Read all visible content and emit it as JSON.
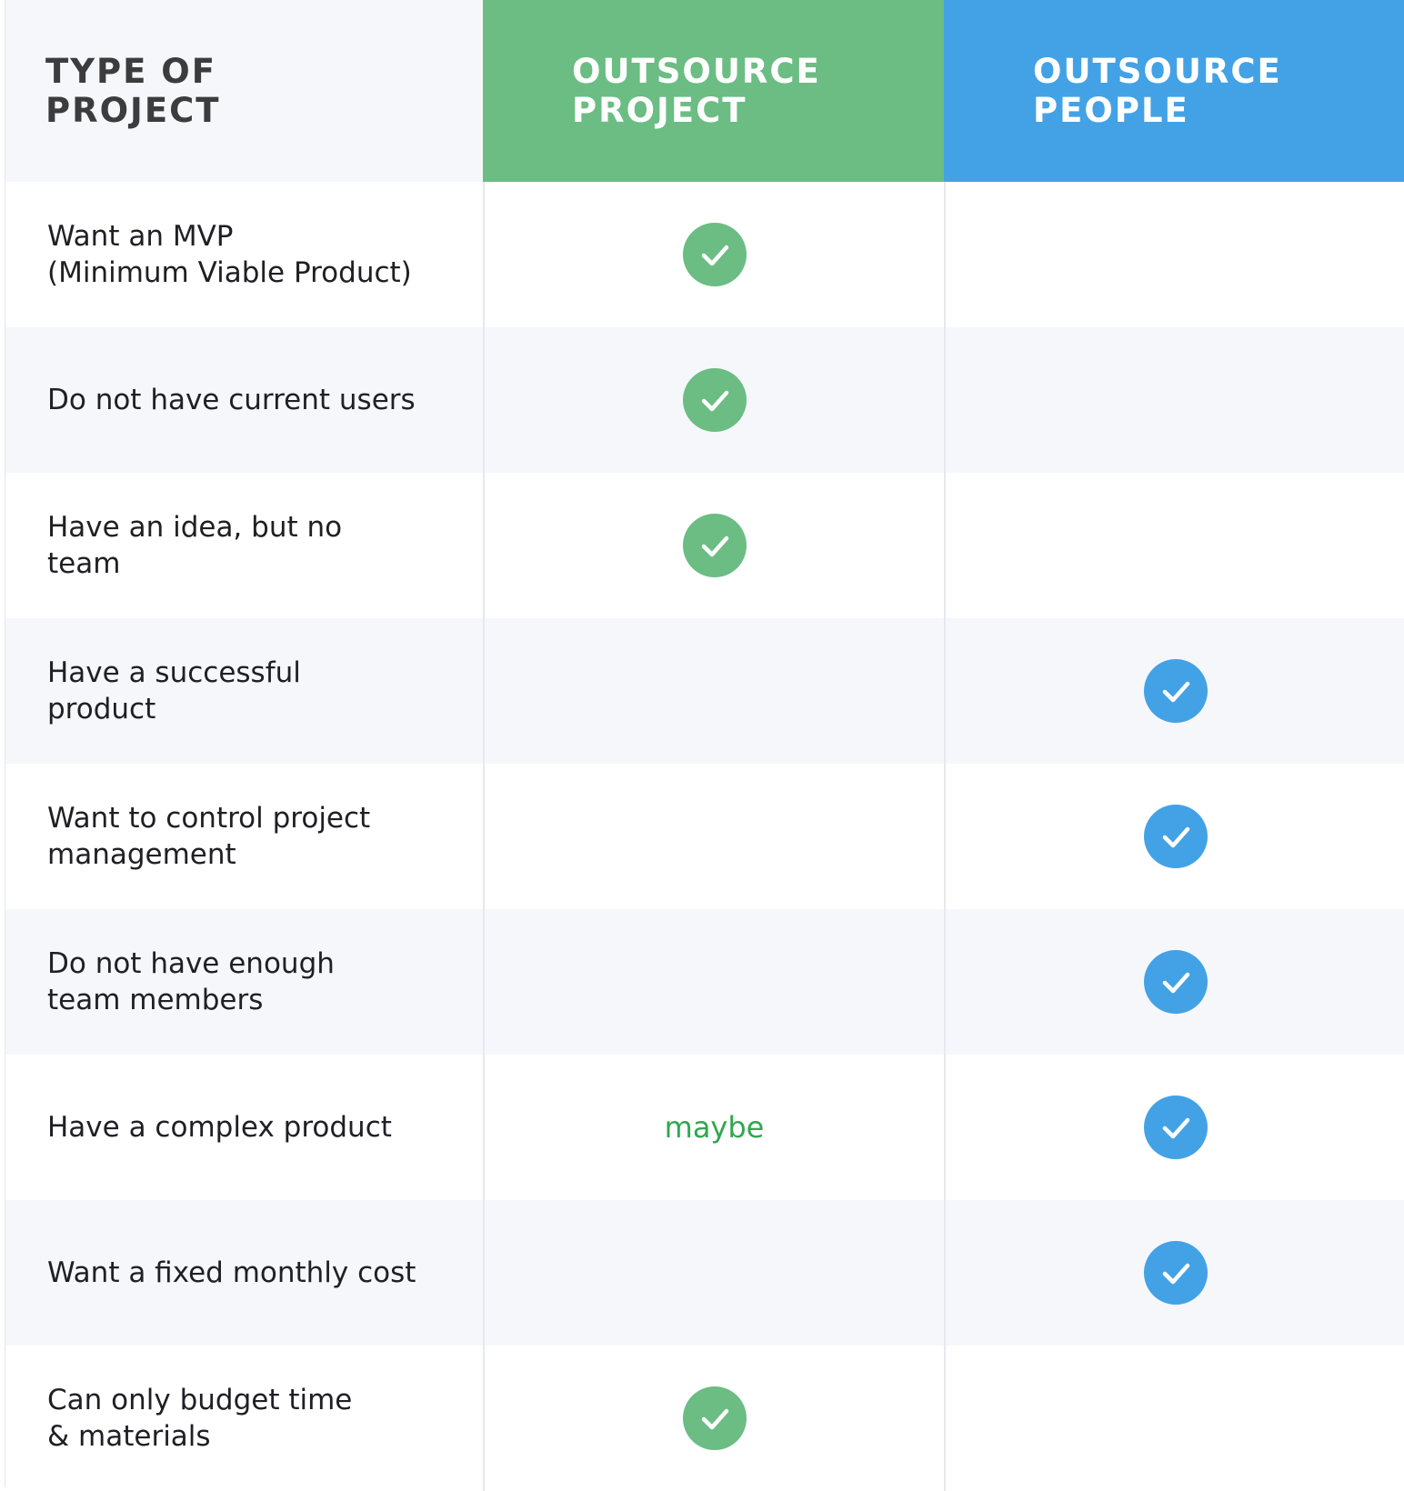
{
  "colors": {
    "project_green": "#6bbd83",
    "people_blue": "#43a2e5",
    "maybe_text": "#2fa84f",
    "alt_row": "#f6f7fb"
  },
  "header": {
    "type_label": "TYPE OF\nPROJECT",
    "project_label": "OUTSOURCE\nPROJECT",
    "people_label": "OUTSOURCE\nPEOPLE"
  },
  "rows": [
    {
      "label": "Want an MVP\n(Minimum Viable Product)",
      "project": "check",
      "people": ""
    },
    {
      "label": "Do not have current users",
      "project": "check",
      "people": ""
    },
    {
      "label": "Have an idea, but no\nteam",
      "project": "check",
      "people": ""
    },
    {
      "label": "Have a successful\nproduct",
      "project": "",
      "people": "check"
    },
    {
      "label": "Want to control project\nmanagement",
      "project": "",
      "people": "check"
    },
    {
      "label": "Do not have enough\nteam members",
      "project": "",
      "people": "check"
    },
    {
      "label": "Have a complex product",
      "project": "maybe",
      "people": "check"
    },
    {
      "label": "Want a fixed monthly cost",
      "project": "",
      "people": "check"
    },
    {
      "label": "Can only budget time\n& materials",
      "project": "check",
      "people": ""
    }
  ]
}
